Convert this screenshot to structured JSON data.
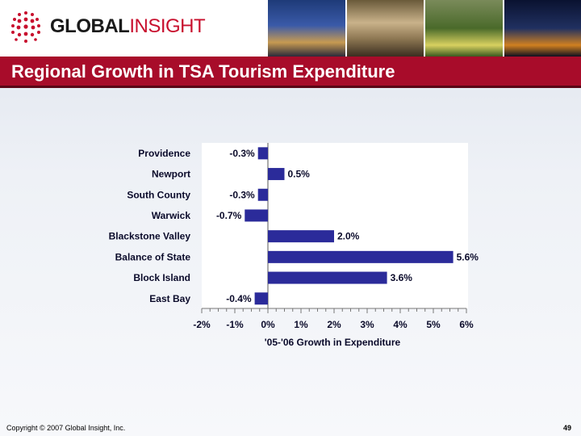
{
  "header": {
    "logo": {
      "word1": "GLOBAL",
      "word2": "INSIGHT"
    },
    "photos": [
      "lighthouse-photo",
      "ballroom-photo",
      "garden-photo",
      "city-night-photo"
    ]
  },
  "title": "Regional Growth in TSA Tourism Expenditure",
  "footer": {
    "copyright": "Copyright © 2007 Global Insight, Inc.",
    "page_number": "49"
  },
  "colors": {
    "bar": "#2b2b9a",
    "title_bar": "#a80c2a",
    "accent": "#c8102e"
  },
  "chart_data": {
    "type": "bar",
    "orientation": "horizontal",
    "categories": [
      "Providence",
      "Newport",
      "South County",
      "Warwick",
      "Blackstone Valley",
      "Balance of State",
      "Block Island",
      "East Bay"
    ],
    "values": [
      -0.3,
      0.5,
      -0.3,
      -0.7,
      2.0,
      5.6,
      3.6,
      -0.4
    ],
    "data_labels": [
      "-0.3%",
      "0.5%",
      "-0.3%",
      "-0.7%",
      "2.0%",
      "5.6%",
      "3.6%",
      "-0.4%"
    ],
    "xlim": [
      -2,
      6
    ],
    "x_ticks": [
      -2,
      -1,
      0,
      1,
      2,
      3,
      4,
      5,
      6
    ],
    "x_tick_labels": [
      "-2%",
      "-1%",
      "0%",
      "1%",
      "2%",
      "3%",
      "4%",
      "5%",
      "6%"
    ],
    "xlabel": "'05-'06 Growth in Expenditure",
    "grid": false,
    "legend": "none"
  }
}
